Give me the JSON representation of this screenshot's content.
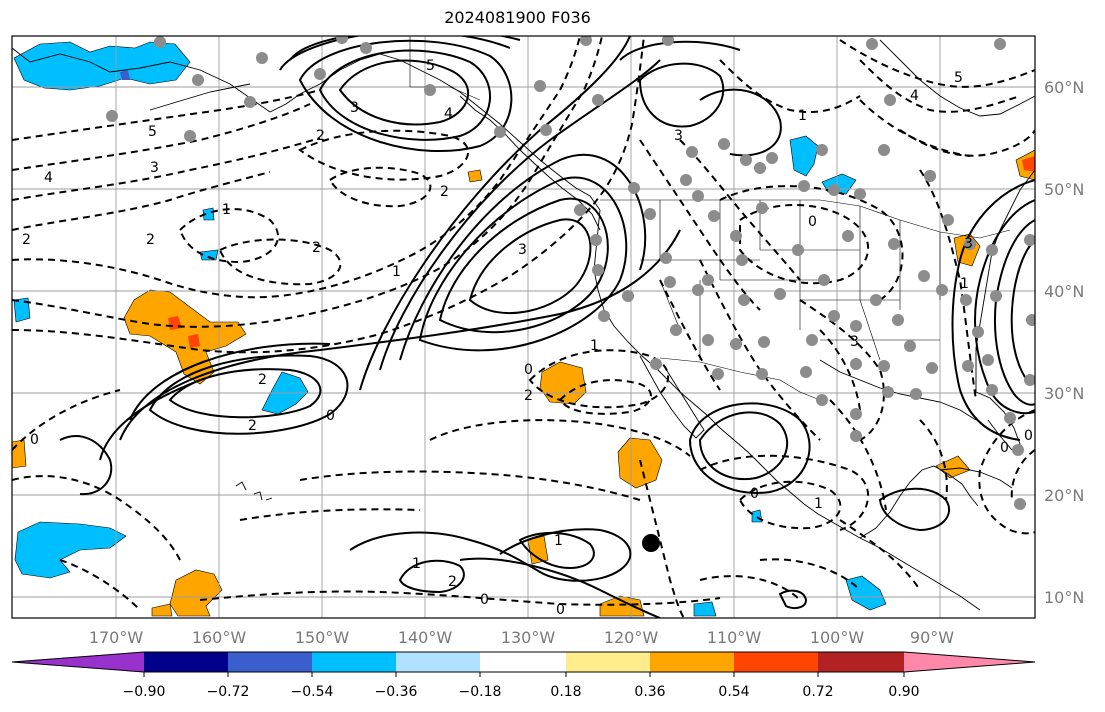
{
  "map": {
    "title": "2024081900 F036",
    "lat_labels": [
      "60°N",
      "50°N",
      "40°N",
      "30°N",
      "20°N",
      "10°N"
    ],
    "lon_labels": [
      "170°W",
      "160°W",
      "150°W",
      "140°W",
      "130°W",
      "120°W",
      "110°W",
      "100°W",
      "90°W"
    ],
    "contour_labels": {
      "gulf_alaska_high": "5",
      "gulf_alaska_3": "3",
      "gulf_alaska_4": "4",
      "offshore_high": "3",
      "hawaii_high": "2",
      "hawaii_2b": "2",
      "zero_hawaii": "0",
      "zero_coast": "0",
      "minus2_coast": "2",
      "minus1_coast": "1",
      "minus5_west": "5",
      "minus3_west": "3",
      "minus4_west": "4",
      "minus2_north": "2",
      "minus1_north": "1",
      "minus2_central": "2",
      "minus1_central": "1",
      "minus2_pac": "2",
      "minus2_b": "2",
      "plus1_south": "1",
      "plus2_south": "2",
      "plus1_south_b": "1",
      "zero_south": "0",
      "zero_south_b": "0",
      "zero_mex": "0",
      "minus1_mex": "1",
      "minus5_canada": "5",
      "minus4_canada": "4",
      "plus3_canada": "3",
      "plus1_bc": "1",
      "minus3_plains": "3",
      "zero_plains": "0",
      "plus3_east": "3",
      "plus1_east": "1",
      "zero_gulf": "0",
      "zero_atl": "0",
      "zero_west_edge": "0",
      "minus2_far_west": "2"
    },
    "colorbar": {
      "tick_labels": [
        "−0.90",
        "−0.72",
        "−0.54",
        "−0.36",
        "−0.18",
        "0.18",
        "0.36",
        "0.54",
        "0.72",
        "0.90"
      ],
      "colors": [
        "#9932cc",
        "#00008b",
        "#3a5fcd",
        "#00bfff",
        "#b0e2ff",
        "#ffffff",
        "#ffec8b",
        "#ffa500",
        "#ff4500",
        "#b22222",
        "#ff88aa"
      ]
    }
  }
}
